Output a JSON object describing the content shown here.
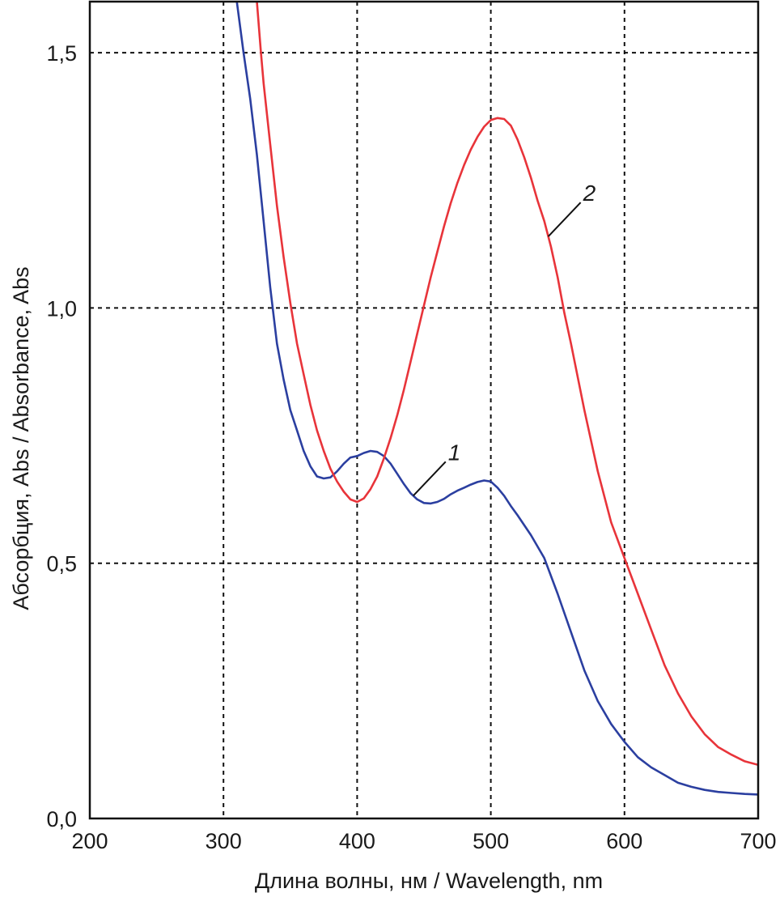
{
  "chart_data": {
    "type": "line",
    "xlabel": "Длина волны, нм / Wavelength, nm",
    "ylabel": "Абсорбция, Abs / Absorbance, Abs",
    "xlim": [
      200,
      700
    ],
    "ylim": [
      0,
      1.6
    ],
    "x_ticks": [
      200,
      300,
      400,
      500,
      600,
      700
    ],
    "x_tick_labels": [
      "200",
      "300",
      "400",
      "500",
      "600",
      "700"
    ],
    "y_ticks": [
      0,
      0.5,
      1.0,
      1.5
    ],
    "y_tick_labels": [
      "0,0",
      "0,5",
      "1,0",
      "1,5"
    ],
    "grid": true,
    "grid_style": "dashed",
    "series": [
      {
        "name": "1",
        "color": "#2b3fa0",
        "x": [
          310,
          315,
          320,
          325,
          330,
          335,
          340,
          345,
          350,
          355,
          360,
          365,
          370,
          375,
          380,
          385,
          390,
          395,
          400,
          405,
          410,
          415,
          420,
          425,
          430,
          435,
          440,
          445,
          450,
          455,
          460,
          465,
          470,
          475,
          480,
          485,
          490,
          495,
          500,
          505,
          510,
          515,
          520,
          530,
          540,
          550,
          560,
          570,
          580,
          590,
          600,
          610,
          620,
          630,
          640,
          650,
          660,
          670,
          680,
          690,
          700
        ],
        "y": [
          1.6,
          1.5,
          1.41,
          1.3,
          1.17,
          1.04,
          0.93,
          0.86,
          0.8,
          0.76,
          0.72,
          0.69,
          0.67,
          0.666,
          0.668,
          0.68,
          0.695,
          0.707,
          0.71,
          0.716,
          0.72,
          0.718,
          0.71,
          0.695,
          0.675,
          0.655,
          0.637,
          0.625,
          0.618,
          0.617,
          0.62,
          0.626,
          0.635,
          0.642,
          0.648,
          0.654,
          0.659,
          0.662,
          0.66,
          0.648,
          0.632,
          0.612,
          0.594,
          0.555,
          0.51,
          0.44,
          0.365,
          0.29,
          0.23,
          0.185,
          0.15,
          0.12,
          0.1,
          0.085,
          0.07,
          0.062,
          0.056,
          0.052,
          0.05,
          0.048,
          0.047
        ]
      },
      {
        "name": "2",
        "color": "#e8343a",
        "x": [
          325,
          328,
          330,
          335,
          340,
          345,
          350,
          355,
          360,
          365,
          370,
          375,
          380,
          385,
          390,
          395,
          400,
          405,
          410,
          415,
          420,
          425,
          430,
          435,
          440,
          445,
          450,
          455,
          460,
          465,
          470,
          475,
          480,
          485,
          490,
          495,
          500,
          505,
          510,
          515,
          520,
          525,
          530,
          535,
          540,
          545,
          550,
          555,
          560,
          570,
          580,
          590,
          600,
          610,
          620,
          630,
          640,
          650,
          660,
          670,
          680,
          690,
          700
        ],
        "y": [
          1.6,
          1.5,
          1.44,
          1.32,
          1.2,
          1.1,
          1.01,
          0.93,
          0.87,
          0.81,
          0.76,
          0.72,
          0.685,
          0.66,
          0.64,
          0.625,
          0.62,
          0.627,
          0.645,
          0.67,
          0.705,
          0.745,
          0.79,
          0.84,
          0.895,
          0.95,
          1.005,
          1.06,
          1.11,
          1.16,
          1.205,
          1.245,
          1.28,
          1.31,
          1.335,
          1.355,
          1.368,
          1.372,
          1.37,
          1.357,
          1.33,
          1.295,
          1.255,
          1.21,
          1.17,
          1.12,
          1.06,
          0.99,
          0.93,
          0.8,
          0.68,
          0.58,
          0.51,
          0.44,
          0.37,
          0.3,
          0.245,
          0.2,
          0.165,
          0.14,
          0.125,
          0.112,
          0.105
        ]
      }
    ],
    "annotations": [
      {
        "text": "1",
        "series": "1",
        "x": 442
      },
      {
        "text": "2",
        "series": "2",
        "x": 543
      }
    ]
  }
}
